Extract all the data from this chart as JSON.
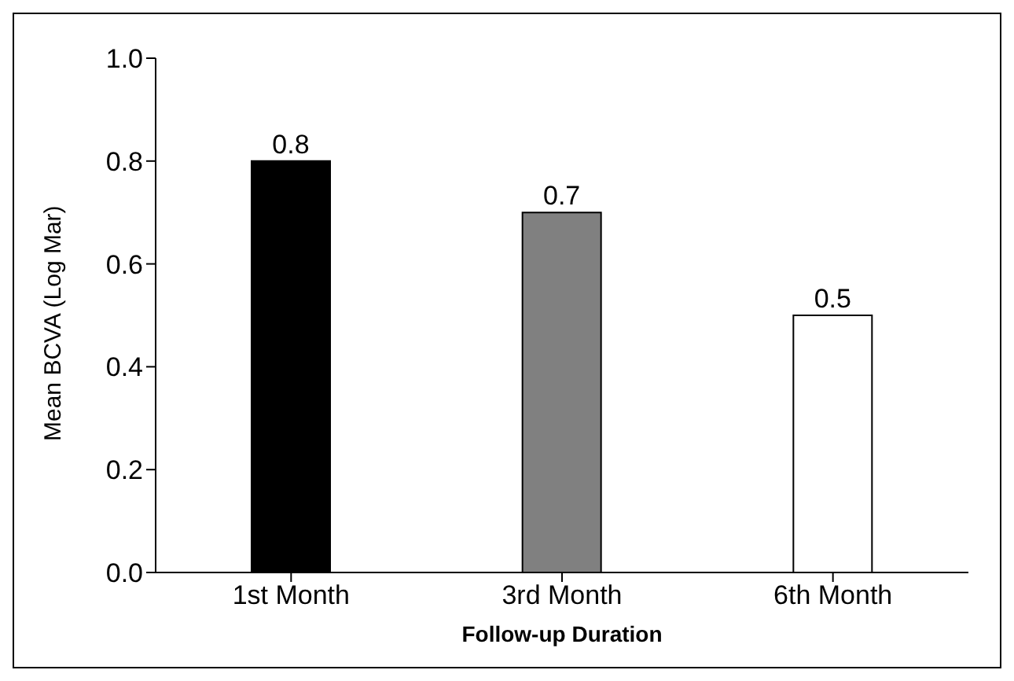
{
  "chart_data": {
    "type": "bar",
    "categories": [
      "1st Month",
      "3rd Month",
      "6th Month"
    ],
    "values": [
      0.8,
      0.7,
      0.5
    ],
    "colors": [
      "#000000",
      "#808080",
      "#ffffff"
    ],
    "xlabel": "Follow-up Duration",
    "ylabel": "Mean BCVA (Log Mar)",
    "ylim": [
      0,
      1
    ],
    "yticks": [
      {
        "value": 0,
        "label": "0.0"
      },
      0.2,
      0.4,
      0.6,
      0.8,
      {
        "value": 1,
        "label": "1.0"
      }
    ],
    "data_labels": true,
    "grid": false
  }
}
